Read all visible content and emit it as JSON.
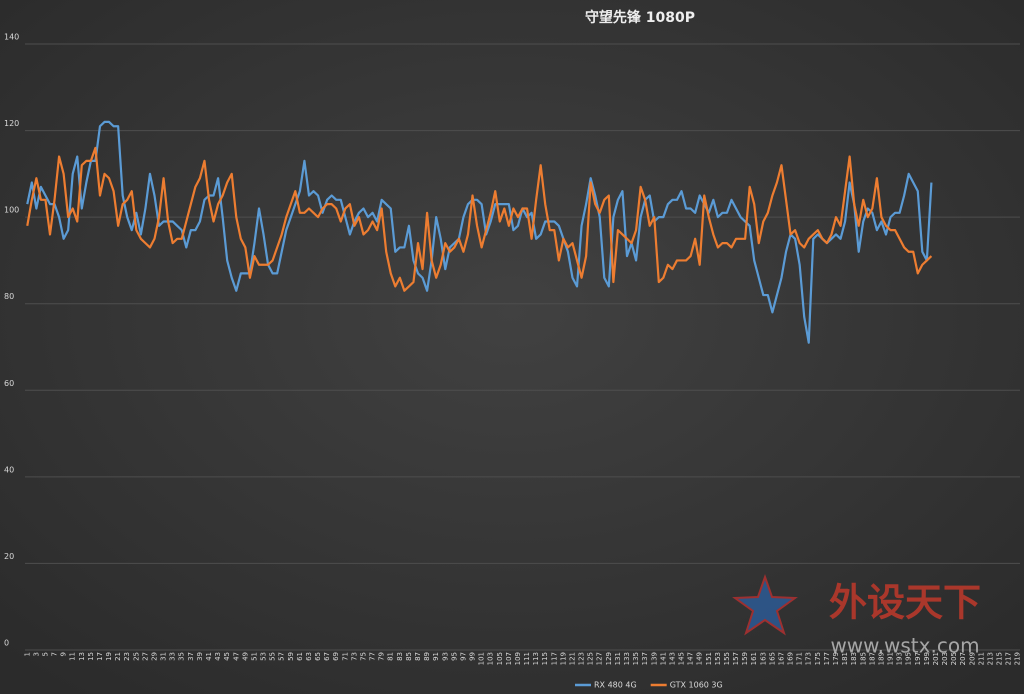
{
  "chart_data": {
    "type": "line",
    "title": "守望先锋 1080P",
    "watermark": {
      "brand": "外设天下",
      "url": "www.wstx.com"
    },
    "categories": [
      1,
      null,
      3,
      null,
      5,
      null,
      7,
      null,
      9,
      null,
      11,
      null,
      13,
      null,
      15,
      null,
      17,
      null,
      19,
      null,
      21,
      null,
      23,
      null,
      25,
      null,
      27,
      null,
      29,
      null,
      31,
      null,
      33,
      null,
      35,
      null,
      37,
      null,
      39,
      null,
      41,
      null,
      43,
      null,
      45,
      null,
      47,
      null,
      49,
      null,
      51,
      null,
      53,
      null,
      55,
      null,
      57,
      null,
      59,
      null,
      61,
      null,
      63,
      null,
      65,
      null,
      67,
      null,
      69,
      null,
      71,
      null,
      73,
      null,
      75,
      null,
      77,
      null,
      79,
      null,
      81,
      null,
      83,
      null,
      85,
      null,
      87,
      null,
      89,
      null,
      91,
      null,
      93,
      null,
      95,
      null,
      97,
      null,
      99,
      null,
      101,
      null,
      103,
      null,
      105,
      null,
      107,
      null,
      109,
      null,
      111,
      null,
      113,
      null,
      115,
      null,
      117,
      null,
      119,
      null,
      121,
      null,
      123,
      null,
      125,
      null,
      127,
      null,
      129,
      null,
      131,
      null,
      133,
      null,
      135,
      null,
      137,
      null,
      139,
      null,
      141,
      null,
      143,
      null,
      145,
      null,
      147,
      null,
      149,
      null,
      151,
      null,
      153,
      null,
      155,
      null,
      157,
      null,
      159,
      null,
      161,
      null,
      163,
      null,
      165,
      null,
      167,
      null,
      169,
      null,
      171,
      null,
      173,
      null,
      175,
      null,
      177,
      null,
      179,
      null,
      181,
      null,
      183,
      null,
      185,
      null,
      187,
      null,
      189,
      null,
      191,
      null,
      193,
      null,
      195,
      null,
      197,
      null,
      199,
      null,
      201,
      null,
      203,
      null,
      205,
      null,
      207,
      null,
      209,
      null,
      211,
      null,
      213,
      null,
      215,
      null,
      217,
      null,
      219
    ],
    "series": [
      {
        "name": "RX 480 4G",
        "color": "#5b9bd5",
        "values": [
          103,
          108,
          102,
          107,
          105,
          103,
          103,
          100,
          95,
          97,
          110,
          114,
          102,
          108,
          113,
          113,
          121,
          122,
          122,
          121,
          121,
          105,
          100,
          97,
          101,
          96,
          102,
          110,
          105,
          98,
          99,
          99,
          99,
          98,
          97,
          93,
          97,
          97,
          99,
          104,
          105,
          105,
          109,
          100,
          90,
          86,
          83,
          87,
          87,
          87,
          94,
          102,
          96,
          89,
          87,
          87,
          92,
          97,
          100,
          103,
          106,
          113,
          105,
          106,
          105,
          101,
          104,
          105,
          104,
          104,
          100,
          96,
          99,
          101,
          102,
          100,
          101,
          99,
          104,
          103,
          102,
          92,
          93,
          93,
          98,
          90,
          87,
          86,
          83,
          90,
          100,
          95,
          88,
          93,
          94,
          95,
          100,
          103,
          104,
          104,
          103,
          96,
          99,
          103,
          103,
          103,
          103,
          97,
          98,
          102,
          100,
          101,
          95,
          96,
          99,
          99,
          99,
          98,
          95,
          92,
          86,
          84,
          98,
          103,
          109,
          105,
          100,
          86,
          84,
          100,
          104,
          106,
          91,
          94,
          90,
          100,
          104,
          105,
          99,
          100,
          100,
          103,
          104,
          104,
          106,
          102,
          102,
          101,
          105,
          103,
          101,
          104,
          100,
          101,
          101,
          104,
          102,
          100,
          99,
          98,
          90,
          86,
          82,
          82,
          78,
          82,
          86,
          92,
          96,
          95,
          89,
          77,
          71,
          95,
          96,
          95,
          94,
          95,
          96,
          95,
          99,
          108,
          103,
          92,
          99,
          102,
          101,
          97,
          99,
          96,
          100,
          101,
          101,
          105,
          110,
          108,
          106,
          92,
          90,
          108,
          null,
          null,
          null,
          null,
          null,
          null,
          null,
          null,
          null,
          null,
          null,
          null,
          null,
          null,
          null,
          null,
          null,
          null,
          null
        ]
      },
      {
        "name": "GTX 1060 3G",
        "color": "#ed7d31",
        "values": [
          98,
          104,
          109,
          104,
          104,
          96,
          104,
          114,
          110,
          100,
          102,
          99,
          112,
          113,
          113,
          116,
          105,
          110,
          109,
          106,
          98,
          103,
          104,
          106,
          97,
          95,
          94,
          93,
          95,
          100,
          109,
          99,
          94,
          95,
          95,
          99,
          103,
          107,
          109,
          113,
          104,
          99,
          103,
          105,
          108,
          110,
          100,
          95,
          93,
          86,
          91,
          89,
          89,
          89,
          90,
          93,
          96,
          100,
          103,
          106,
          101,
          101,
          102,
          101,
          100,
          102,
          103,
          103,
          102,
          99,
          102,
          103,
          98,
          100,
          96,
          97,
          99,
          97,
          102,
          92,
          87,
          84,
          86,
          83,
          84,
          85,
          94,
          88,
          101,
          90,
          86,
          89,
          94,
          92,
          93,
          95,
          92,
          96,
          105,
          98,
          93,
          97,
          101,
          106,
          99,
          102,
          98,
          102,
          100,
          102,
          102,
          95,
          104,
          112,
          103,
          97,
          97,
          90,
          95,
          93,
          94,
          90,
          86,
          91,
          108,
          103,
          101,
          104,
          105,
          85,
          97,
          96,
          95,
          94,
          97,
          107,
          104,
          98,
          100,
          85,
          86,
          89,
          88,
          90,
          90,
          90,
          91,
          95,
          89,
          105,
          100,
          96,
          93,
          94,
          94,
          93,
          95,
          95,
          95,
          107,
          103,
          94,
          99,
          101,
          105,
          108,
          112,
          104,
          96,
          97,
          94,
          93,
          95,
          96,
          97,
          95,
          94,
          96,
          100,
          98,
          106,
          114,
          103,
          98,
          104,
          100,
          102,
          109,
          100,
          98,
          97,
          97,
          95,
          93,
          92,
          92,
          87,
          89,
          90,
          91,
          null,
          null,
          null,
          null,
          null,
          null,
          null,
          null,
          null,
          null,
          null,
          null,
          null,
          null,
          null,
          null,
          null,
          null,
          null
        ]
      }
    ],
    "ylim": [
      0,
      140
    ],
    "yticks": [
      0,
      20,
      40,
      60,
      80,
      100,
      120,
      140
    ],
    "grid": true,
    "legend": "bottom"
  }
}
